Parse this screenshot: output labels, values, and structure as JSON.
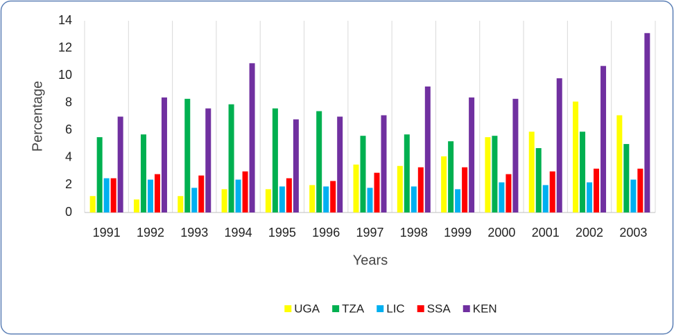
{
  "chart_data": {
    "type": "bar",
    "x_label": "Years",
    "y_label": "Percentage",
    "categories": [
      "1991",
      "1992",
      "1993",
      "1994",
      "1995",
      "1996",
      "1997",
      "1998",
      "1999",
      "2000",
      "2001",
      "2002",
      "2003"
    ],
    "series": [
      {
        "name": "UGA",
        "color": "#ffff00",
        "values": [
          1.2,
          0.95,
          1.2,
          1.7,
          1.7,
          2.0,
          3.5,
          3.4,
          4.1,
          5.5,
          5.9,
          8.1,
          7.1
        ]
      },
      {
        "name": "TZA",
        "color": "#00b050",
        "values": [
          5.5,
          5.7,
          8.3,
          7.9,
          7.6,
          7.4,
          5.6,
          5.7,
          5.2,
          5.6,
          4.7,
          5.9,
          5.0
        ]
      },
      {
        "name": "LIC",
        "color": "#00b0f0",
        "values": [
          2.5,
          2.4,
          1.8,
          2.4,
          1.9,
          1.9,
          1.8,
          1.9,
          1.7,
          2.2,
          2.0,
          2.2,
          2.4
        ]
      },
      {
        "name": "SSA",
        "color": "#ff0000",
        "values": [
          2.5,
          2.8,
          2.7,
          3.0,
          2.5,
          2.3,
          2.9,
          3.3,
          3.3,
          2.8,
          3.0,
          3.2,
          3.2
        ]
      },
      {
        "name": "KEN",
        "color": "#7030a0",
        "values": [
          7.0,
          8.4,
          7.6,
          10.9,
          6.8,
          7.0,
          7.1,
          9.2,
          8.4,
          8.3,
          9.8,
          10.7,
          13.1
        ]
      }
    ],
    "ylim": [
      0,
      14
    ],
    "yticks": [
      0,
      2,
      4,
      6,
      8,
      10,
      12,
      14
    ],
    "grid": "x",
    "legend": "bottom"
  }
}
